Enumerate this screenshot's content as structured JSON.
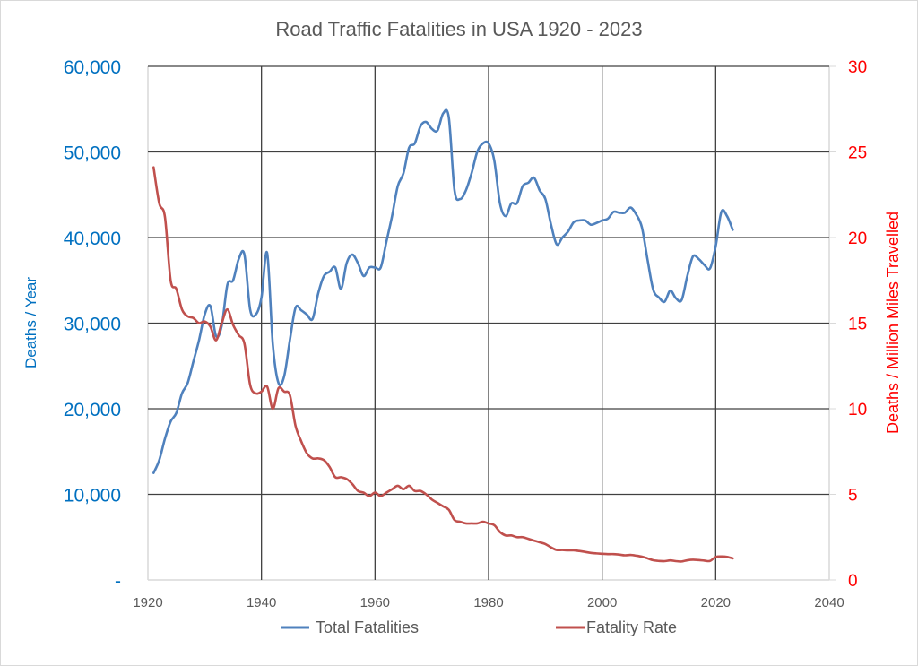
{
  "chart_data": {
    "type": "line",
    "title": "Road Traffic Fatalities in USA 1920  - 2023",
    "xlabel": "",
    "ylabel": "Deaths / Year",
    "y2label": "Deaths / Million Miles Travelled",
    "xlim": [
      1920,
      2040
    ],
    "ylim": [
      0,
      60000
    ],
    "y2lim": [
      0,
      30
    ],
    "grid": true,
    "legend_position": "bottom",
    "x_ticks": [
      "1920",
      "1940",
      "1960",
      "1980",
      "2000",
      "2020",
      "2040"
    ],
    "x_tick_values": [
      1920,
      1940,
      1960,
      1980,
      2000,
      2020,
      2040
    ],
    "y_ticks": [
      "-",
      "10,000",
      "20,000",
      "30,000",
      "40,000",
      "50,000",
      "60,000"
    ],
    "y_tick_values": [
      0,
      10000,
      20000,
      30000,
      40000,
      50000,
      60000
    ],
    "y2_ticks": [
      "0",
      "5",
      "10",
      "15",
      "20",
      "25",
      "30"
    ],
    "y2_tick_values": [
      0,
      5,
      10,
      15,
      20,
      25,
      30
    ],
    "colors": {
      "total": "#4f81bd",
      "rate": "#c0504d",
      "left_axis": "#0070c0",
      "right_axis": "#ff0000",
      "grid": "#404040",
      "text": "#595959"
    },
    "x": [
      1921,
      1922,
      1923,
      1924,
      1925,
      1926,
      1927,
      1928,
      1929,
      1930,
      1931,
      1932,
      1933,
      1934,
      1935,
      1936,
      1937,
      1938,
      1939,
      1940,
      1941,
      1942,
      1943,
      1944,
      1945,
      1946,
      1947,
      1948,
      1949,
      1950,
      1951,
      1952,
      1953,
      1954,
      1955,
      1956,
      1957,
      1958,
      1959,
      1960,
      1961,
      1962,
      1963,
      1964,
      1965,
      1966,
      1967,
      1968,
      1969,
      1970,
      1971,
      1972,
      1973,
      1974,
      1975,
      1976,
      1977,
      1978,
      1979,
      1980,
      1981,
      1982,
      1983,
      1984,
      1985,
      1986,
      1987,
      1988,
      1989,
      1990,
      1991,
      1992,
      1993,
      1994,
      1995,
      1996,
      1997,
      1998,
      1999,
      2000,
      2001,
      2002,
      2003,
      2004,
      2005,
      2006,
      2007,
      2008,
      2009,
      2010,
      2011,
      2012,
      2013,
      2014,
      2015,
      2016,
      2017,
      2018,
      2019,
      2020,
      2021,
      2022,
      2023
    ],
    "series": [
      {
        "name": "Total Fatalities",
        "axis": "left",
        "values": [
          12500,
          14000,
          16500,
          18500,
          19500,
          21800,
          23000,
          25500,
          28000,
          31000,
          32000,
          28500,
          29700,
          34500,
          35000,
          37500,
          38000,
          31600,
          31000,
          33000,
          38200,
          27500,
          23000,
          23800,
          28000,
          31800,
          31500,
          31000,
          30500,
          33500,
          35500,
          36000,
          36500,
          34000,
          37000,
          38000,
          37000,
          35500,
          36500,
          36500,
          36500,
          39500,
          42500,
          46000,
          47500,
          50500,
          51000,
          53000,
          53500,
          52700,
          52500,
          54500,
          54000,
          45500,
          44500,
          45500,
          47500,
          50000,
          51000,
          51000,
          49000,
          44000,
          42500,
          44000,
          44000,
          46000,
          46400,
          47000,
          45500,
          44500,
          41500,
          39200,
          40000,
          40700,
          41800,
          42000,
          42000,
          41500,
          41700,
          42000,
          42200,
          43000,
          42900,
          42900,
          43500,
          42700,
          41200,
          37400,
          33900,
          33000,
          32500,
          33800,
          32900,
          32700,
          35500,
          37800,
          37500,
          36800,
          36400,
          39000,
          43000,
          42500,
          40900
        ]
      },
      {
        "name": "Fatality Rate",
        "axis": "right",
        "values": [
          24.1,
          22.0,
          21.2,
          17.5,
          17.0,
          15.8,
          15.4,
          15.3,
          15.0,
          15.1,
          14.8,
          14.0,
          15.0,
          15.8,
          14.9,
          14.3,
          13.8,
          11.4,
          10.9,
          11.0,
          11.3,
          10.0,
          11.2,
          11.0,
          10.8,
          9.0,
          8.1,
          7.4,
          7.1,
          7.1,
          7.0,
          6.6,
          6.0,
          6.0,
          5.9,
          5.6,
          5.2,
          5.1,
          4.9,
          5.1,
          4.9,
          5.1,
          5.3,
          5.5,
          5.3,
          5.5,
          5.2,
          5.2,
          5.0,
          4.7,
          4.5,
          4.3,
          4.1,
          3.5,
          3.4,
          3.3,
          3.3,
          3.3,
          3.4,
          3.3,
          3.2,
          2.8,
          2.6,
          2.6,
          2.5,
          2.5,
          2.4,
          2.3,
          2.2,
          2.1,
          1.9,
          1.75,
          1.75,
          1.73,
          1.73,
          1.69,
          1.64,
          1.58,
          1.55,
          1.53,
          1.51,
          1.51,
          1.48,
          1.44,
          1.46,
          1.42,
          1.36,
          1.26,
          1.15,
          1.11,
          1.1,
          1.14,
          1.1,
          1.08,
          1.15,
          1.18,
          1.16,
          1.13,
          1.11,
          1.34,
          1.37,
          1.35,
          1.26
        ]
      }
    ]
  }
}
